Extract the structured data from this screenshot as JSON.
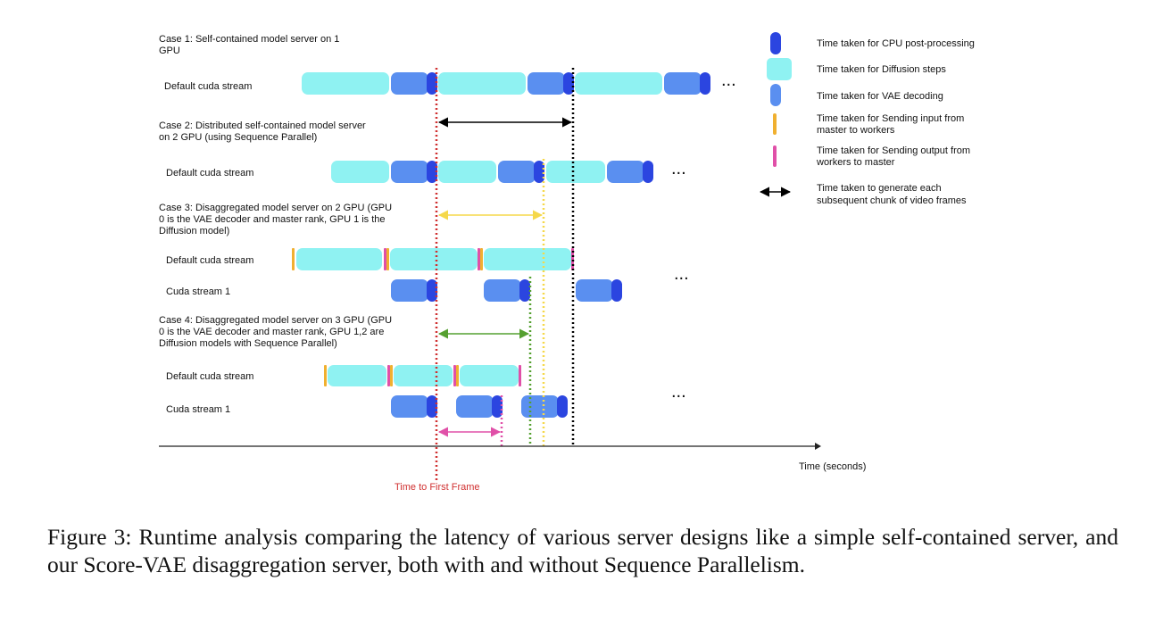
{
  "diagram": {
    "cases": [
      {
        "id": "case1",
        "title_lines": [
          "Case 1: Self-contained model server on 1",
          "GPU"
        ],
        "streams": [
          {
            "label": "Default cuda stream"
          }
        ]
      },
      {
        "id": "case2",
        "title_lines": [
          "Case 2: Distributed self-contained model server",
          "on 2 GPU (using Sequence Parallel)"
        ],
        "streams": [
          {
            "label": "Default cuda stream"
          }
        ]
      },
      {
        "id": "case3",
        "title_lines": [
          "Case 3: Disaggregated model server on 2 GPU (GPU",
          "0 is the VAE decoder and master rank, GPU 1 is the",
          "Diffusion model)"
        ],
        "streams": [
          {
            "label": "Default cuda stream"
          },
          {
            "label": "Cuda stream 1"
          }
        ]
      },
      {
        "id": "case4",
        "title_lines": [
          "Case 4: Disaggregated model server on 3 GPU (GPU",
          "0 is the VAE decoder and master rank, GPU 1,2 are",
          "Diffusion models with Sequence Parallel)"
        ],
        "streams": [
          {
            "label": "Default cuda stream"
          },
          {
            "label": "Cuda stream 1"
          }
        ]
      }
    ],
    "ellipsis": "...",
    "legend": [
      {
        "key": "cpu",
        "text_lines": [
          "Time taken for CPU post-processing"
        ],
        "color": "#2b45e0"
      },
      {
        "key": "diffusion",
        "text_lines": [
          "Time taken for Diffusion steps"
        ],
        "color": "#8ff2f2"
      },
      {
        "key": "vae",
        "text_lines": [
          "Time taken for VAE decoding"
        ],
        "color": "#5a8ff0"
      },
      {
        "key": "send-input",
        "text_lines": [
          "Time taken for Sending input from",
          "master to workers"
        ],
        "color": "#f0b030"
      },
      {
        "key": "send-output",
        "text_lines": [
          "Time taken for Sending output from",
          "workers to master"
        ],
        "color": "#e050a8"
      },
      {
        "key": "chunk",
        "text_lines": [
          "Time taken to generate each",
          "subsequent chunk of video frames"
        ],
        "color": "#000000"
      }
    ],
    "x_axis_label": "Time (seconds)",
    "ttff_label": "Time to First Frame",
    "colors": {
      "cpu": "#2b45e0",
      "diffusion": "#8ff2f2",
      "vae": "#5a8ff0",
      "send_input": "#f0b030",
      "send_output": "#e050a8",
      "ttff": "#d03030",
      "case2_chunk": "#000000",
      "case3_chunk": "#f5d84a",
      "case4_chunk": "#55a030",
      "case4_vae_chunk": "#e050a8"
    }
  },
  "caption": "Figure 3: Runtime analysis comparing the latency of various server designs like a simple self-contained server, and our Score-VAE disaggregation server, both with and without Sequence Parallelism."
}
